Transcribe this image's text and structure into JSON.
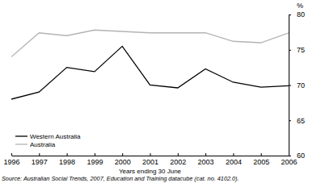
{
  "chart_data": {
    "type": "line",
    "x_label": "Years ending 30 June",
    "y_label": "%",
    "source": "Source: Australian Social Trends, 2007, Education and Training datacube (cat. no. 4102.0).",
    "categories": [
      "1996",
      "1997",
      "1998",
      "1999",
      "2000",
      "2001",
      "2002",
      "2003",
      "2004",
      "2005",
      "2006"
    ],
    "series": [
      {
        "name": "Western Australia",
        "color": "#000000",
        "values": [
          68,
          69,
          72.5,
          71.9,
          75.5,
          70,
          69.6,
          72.3,
          70.4,
          69.7,
          69.9
        ]
      },
      {
        "name": "Australia",
        "color": "#b3b3b3",
        "values": [
          74,
          77.4,
          77,
          77.8,
          77.6,
          77.4,
          77.4,
          77.4,
          76.2,
          76,
          77.4
        ]
      }
    ],
    "ylim": [
      60,
      80
    ],
    "yticks": [
      60,
      65,
      70,
      75,
      80
    ],
    "grid": false,
    "legend": "lower left"
  }
}
